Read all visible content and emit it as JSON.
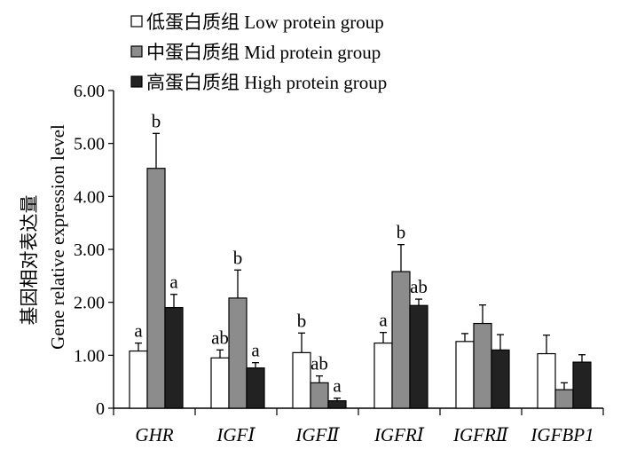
{
  "chart_data": {
    "type": "bar",
    "categories": [
      "GHR",
      "IGFⅠ",
      "IGFⅡ",
      "IGFRⅠ",
      "IGFRⅡ",
      "IGFBP1"
    ],
    "series": [
      {
        "name": "低蛋白质组 Low protein group",
        "color": "#ffffff",
        "values": [
          1.08,
          0.95,
          1.05,
          1.23,
          1.26,
          1.03
        ],
        "errors": [
          0.15,
          0.15,
          0.37,
          0.2,
          0.15,
          0.35
        ],
        "labels": [
          "a",
          "ab",
          "b",
          "a",
          "",
          ""
        ]
      },
      {
        "name": "中蛋白质组 Mid protein group",
        "color": "#8c8c8c",
        "values": [
          4.53,
          2.08,
          0.48,
          2.58,
          1.6,
          0.35
        ],
        "errors": [
          0.66,
          0.53,
          0.13,
          0.51,
          0.35,
          0.13
        ],
        "labels": [
          "b",
          "b",
          "ab",
          "b",
          "",
          ""
        ]
      },
      {
        "name": "高蛋白质组 High protein group",
        "color": "#222222",
        "values": [
          1.9,
          0.76,
          0.14,
          1.94,
          1.1,
          0.87
        ],
        "errors": [
          0.25,
          0.1,
          0.05,
          0.12,
          0.29,
          0.14
        ],
        "labels": [
          "a",
          "a",
          "a",
          "ab",
          "",
          ""
        ]
      }
    ],
    "ylabel": "基因相对表达量 Gene relative expression level",
    "ylabel_cn": "基因相对表达量",
    "ylabel_en": "Gene relative expression level",
    "ylim": [
      0,
      6
    ],
    "yticks": [
      "0",
      "1.00",
      "2.00",
      "3.00",
      "4.00",
      "5.00",
      "6.00"
    ],
    "grid": false,
    "legend_position": "top"
  }
}
